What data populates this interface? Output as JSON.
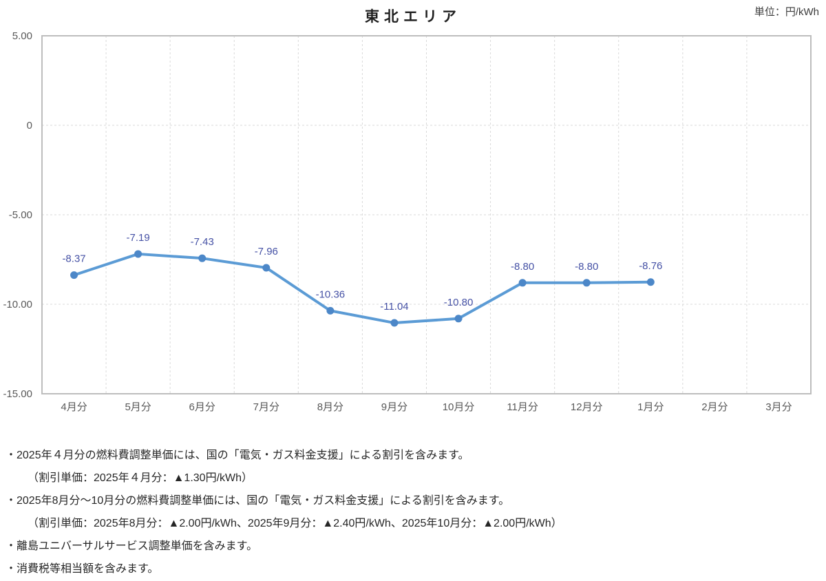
{
  "title": "東北エリア",
  "unit_label": "単位：円/kWh",
  "chart_data": {
    "type": "line",
    "title": "東北エリア",
    "unit": "円/kWh",
    "categories": [
      "4月分",
      "5月分",
      "6月分",
      "7月分",
      "8月分",
      "9月分",
      "10月分",
      "11月分",
      "12月分",
      "1月分",
      "2月分",
      "3月分"
    ],
    "series": [
      {
        "name": "",
        "values": [
          -8.37,
          -7.19,
          -7.43,
          -7.96,
          -10.36,
          -11.04,
          -10.8,
          -8.8,
          -8.8,
          -8.76,
          null,
          null
        ],
        "point_labels": [
          "-8.37",
          "-7.19",
          "-7.43",
          "-7.96",
          "-10.36",
          "-11.04",
          "-10.80",
          "-8.80",
          "-8.80",
          "-8.76"
        ]
      }
    ],
    "ylim": [
      -15,
      5
    ],
    "yticks": [
      {
        "value": 5,
        "label": "5.00"
      },
      {
        "value": 0,
        "label": "0"
      },
      {
        "value": -5,
        "label": "-5.00"
      },
      {
        "value": -10,
        "label": "-10.00"
      },
      {
        "value": -15,
        "label": "-15.00"
      }
    ],
    "grid": true,
    "legend": "none",
    "colors": {
      "line": "#5B9BD5",
      "marker": "#4C87C8",
      "point_label": "#4551A5",
      "grid_line": "#D9D9D9",
      "plot_border": "#BDBDBD",
      "tick_label": "#595959"
    }
  },
  "notes": [
    {
      "text": "・2025年４月分の燃料費調整単価には、国の「電気・ガス料金支援」による割引を含みます。",
      "indent": false
    },
    {
      "text": "（割引単価：2025年４月分：▲1.30円/kWh）",
      "indent": true
    },
    {
      "text": "・2025年8月分～10月分の燃料費調整単価には、国の「電気・ガス料金支援」による割引を含みます。",
      "indent": false
    },
    {
      "text": "（割引単価：2025年8月分：▲2.00円/kWh、2025年9月分：▲2.40円/kWh、2025年10月分：▲2.00円/kWh）",
      "indent": true
    },
    {
      "text": "・離島ユニバーサルサービス調整単価を含みます。",
      "indent": false
    },
    {
      "text": "・消費税等相当額を含みます。",
      "indent": false
    }
  ]
}
